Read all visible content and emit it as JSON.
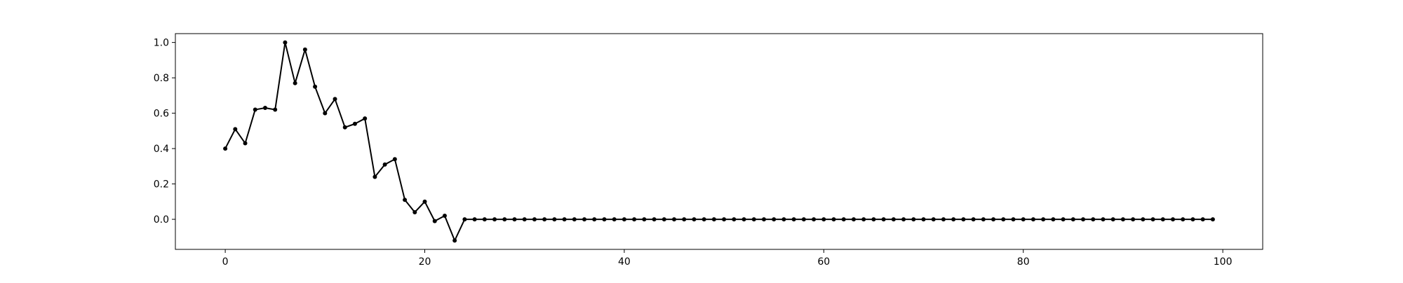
{
  "chart_data": {
    "type": "line",
    "title": "",
    "xlabel": "",
    "ylabel": "",
    "xlim": [
      -5,
      104
    ],
    "ylim": [
      -0.17,
      1.05
    ],
    "xticks": [
      0,
      20,
      40,
      60,
      80,
      100
    ],
    "yticks": [
      0.0,
      0.2,
      0.4,
      0.6,
      0.8,
      1.0
    ],
    "xtick_labels": [
      "0",
      "20",
      "40",
      "60",
      "80",
      "100"
    ],
    "ytick_labels": [
      "0.0",
      "0.2",
      "0.4",
      "0.6",
      "0.8",
      "1.0"
    ],
    "grid": false,
    "legend": "none",
    "series": [
      {
        "color": "#000000",
        "marker": "circle",
        "x": [
          0,
          1,
          2,
          3,
          4,
          5,
          6,
          7,
          8,
          9,
          10,
          11,
          12,
          13,
          14,
          15,
          16,
          17,
          18,
          19,
          20,
          21,
          22,
          23,
          24,
          25,
          26,
          27,
          28,
          29,
          30,
          31,
          32,
          33,
          34,
          35,
          36,
          37,
          38,
          39,
          40,
          41,
          42,
          43,
          44,
          45,
          46,
          47,
          48,
          49,
          50,
          51,
          52,
          53,
          54,
          55,
          56,
          57,
          58,
          59,
          60,
          61,
          62,
          63,
          64,
          65,
          66,
          67,
          68,
          69,
          70,
          71,
          72,
          73,
          74,
          75,
          76,
          77,
          78,
          79,
          80,
          81,
          82,
          83,
          84,
          85,
          86,
          87,
          88,
          89,
          90,
          91,
          92,
          93,
          94,
          95,
          96,
          97,
          98,
          99
        ],
        "y": [
          0.4,
          0.51,
          0.43,
          0.62,
          0.63,
          0.62,
          1.0,
          0.77,
          0.96,
          0.75,
          0.6,
          0.68,
          0.52,
          0.54,
          0.57,
          0.24,
          0.31,
          0.34,
          0.11,
          0.04,
          0.1,
          -0.01,
          0.02,
          -0.12,
          0,
          0,
          0,
          0,
          0,
          0,
          0,
          0,
          0,
          0,
          0,
          0,
          0,
          0,
          0,
          0,
          0,
          0,
          0,
          0,
          0,
          0,
          0,
          0,
          0,
          0,
          0,
          0,
          0,
          0,
          0,
          0,
          0,
          0,
          0,
          0,
          0,
          0,
          0,
          0,
          0,
          0,
          0,
          0,
          0,
          0,
          0,
          0,
          0,
          0,
          0,
          0,
          0,
          0,
          0,
          0,
          0,
          0,
          0,
          0,
          0,
          0,
          0,
          0,
          0,
          0,
          0,
          0,
          0,
          0,
          0,
          0,
          0,
          0,
          0,
          0
        ]
      }
    ]
  }
}
